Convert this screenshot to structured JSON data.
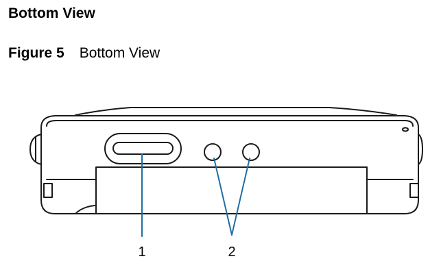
{
  "section": {
    "title": "Bottom View"
  },
  "figure": {
    "label": "Figure 5",
    "name": "Bottom View"
  },
  "callouts": [
    {
      "number": "1"
    },
    {
      "number": "2"
    }
  ],
  "colors": {
    "outline": "#1a1a1a",
    "leader_line": "#1f6fa3",
    "text": "#000000"
  }
}
